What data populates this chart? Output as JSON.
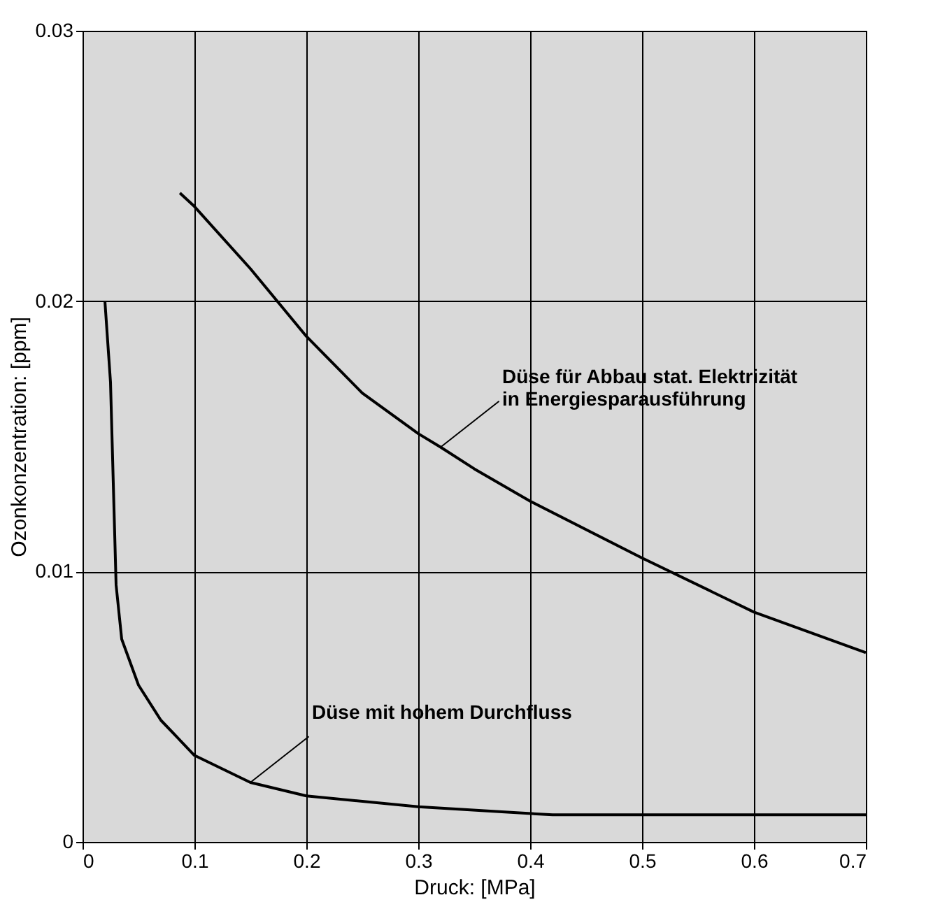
{
  "chart_data": {
    "type": "line",
    "xlabel": "Druck: [MPa]",
    "ylabel": "Ozonkonzentration: [ppm]",
    "xlim": [
      0,
      0.7
    ],
    "xticks": [
      0,
      0.1,
      0.2,
      0.3,
      0.4,
      0.5,
      0.6,
      0.7
    ],
    "ylim": [
      0,
      0.03
    ],
    "yticks": [
      0,
      0.01,
      0.02,
      0.03
    ],
    "grid": true,
    "marker": "none",
    "line_style": "solid",
    "series": [
      {
        "color": "#000000",
        "x": [
          0.087,
          0.1,
          0.15,
          0.2,
          0.25,
          0.3,
          0.32,
          0.35,
          0.4,
          0.5,
          0.6,
          0.7
        ],
        "values": [
          0.024,
          0.0235,
          0.0212,
          0.0187,
          0.0166,
          0.0151,
          0.0146,
          0.0138,
          0.0126,
          0.0105,
          0.0085,
          0.007
        ]
      },
      {
        "color": "#000000",
        "x": [
          0.02,
          0.025,
          0.03,
          0.035,
          0.05,
          0.07,
          0.1,
          0.15,
          0.2,
          0.3,
          0.38,
          0.42,
          0.5,
          0.6,
          0.7
        ],
        "values": [
          0.02,
          0.017,
          0.0095,
          0.0075,
          0.0058,
          0.0045,
          0.0032,
          0.0022,
          0.0017,
          0.0013,
          0.0011,
          0.001,
          0.001,
          0.001,
          0.001
        ]
      }
    ],
    "annotations": [
      {
        "text": "Düse für Abbau stat. Elektrizität\nin Energiesparausführung",
        "x": 0.32,
        "y": 0.0146
      },
      {
        "text": "Düse mit hohem Durchfluss",
        "x": 0.15,
        "y": 0.0022
      }
    ]
  }
}
